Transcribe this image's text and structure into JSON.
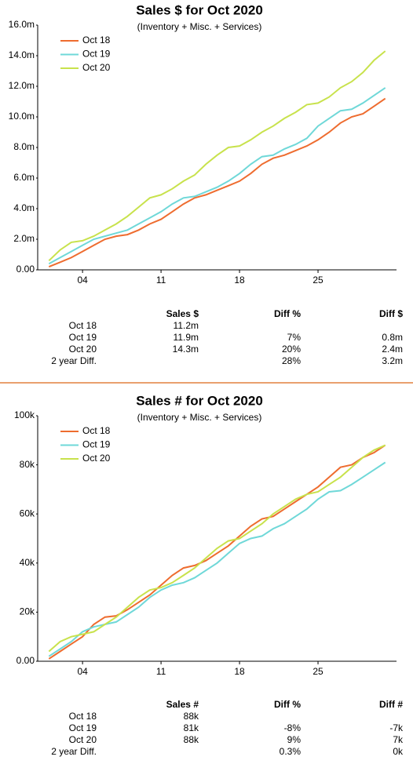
{
  "chart_data": [
    {
      "type": "line",
      "title": "Sales $ for Oct 2020",
      "subtitle": "(Inventory + Misc. + Services)",
      "x": [
        1,
        2,
        3,
        4,
        5,
        6,
        7,
        8,
        9,
        10,
        11,
        12,
        13,
        14,
        15,
        16,
        17,
        18,
        19,
        20,
        21,
        22,
        23,
        24,
        25,
        26,
        27,
        28,
        29,
        30,
        31
      ],
      "xlim": [
        0,
        32
      ],
      "xticks": [
        {
          "value": 4,
          "label": "04"
        },
        11,
        18,
        25
      ],
      "ylim": [
        0,
        16
      ],
      "yticks": [
        {
          "value": 0,
          "label": "0.00"
        },
        {
          "value": 2,
          "label": "2.0m"
        },
        {
          "value": 4,
          "label": "4.0m"
        },
        {
          "value": 6,
          "label": "6.0m"
        },
        {
          "value": 8,
          "label": "8.0m"
        },
        {
          "value": 10,
          "label": "10.0m"
        },
        {
          "value": 12,
          "label": "12.0m"
        },
        {
          "value": 14,
          "label": "14.0m"
        },
        {
          "value": 16,
          "label": "16.0m"
        }
      ],
      "legend": "top-left",
      "grid": false,
      "series": [
        {
          "name": "Oct 18",
          "color": "#ee6c2f",
          "values": [
            0.2,
            0.5,
            0.8,
            1.2,
            1.6,
            2.0,
            2.2,
            2.3,
            2.6,
            3.0,
            3.3,
            3.8,
            4.3,
            4.7,
            4.9,
            5.2,
            5.5,
            5.8,
            6.3,
            6.9,
            7.3,
            7.5,
            7.8,
            8.1,
            8.5,
            9.0,
            9.6,
            10.0,
            10.2,
            10.7,
            11.2
          ]
        },
        {
          "name": "Oct 19",
          "color": "#6fd8d8",
          "values": [
            0.4,
            0.8,
            1.2,
            1.6,
            2.0,
            2.2,
            2.4,
            2.6,
            3.0,
            3.4,
            3.8,
            4.3,
            4.7,
            4.8,
            5.1,
            5.4,
            5.8,
            6.3,
            6.9,
            7.4,
            7.5,
            7.9,
            8.2,
            8.6,
            9.4,
            9.9,
            10.4,
            10.5,
            10.9,
            11.4,
            11.9
          ]
        },
        {
          "name": "Oct 20",
          "color": "#c8e24c",
          "values": [
            0.6,
            1.3,
            1.8,
            1.9,
            2.2,
            2.6,
            3.0,
            3.5,
            4.1,
            4.7,
            4.9,
            5.3,
            5.8,
            6.2,
            6.9,
            7.5,
            8.0,
            8.1,
            8.5,
            9.0,
            9.4,
            9.9,
            10.3,
            10.8,
            10.9,
            11.3,
            11.9,
            12.3,
            12.9,
            13.7,
            14.3
          ]
        }
      ]
    },
    {
      "type": "line",
      "title": "Sales # for Oct 2020",
      "subtitle": "(Inventory + Misc. + Services)",
      "x": [
        1,
        2,
        3,
        4,
        5,
        6,
        7,
        8,
        9,
        10,
        11,
        12,
        13,
        14,
        15,
        16,
        17,
        18,
        19,
        20,
        21,
        22,
        23,
        24,
        25,
        26,
        27,
        28,
        29,
        30,
        31
      ],
      "xlim": [
        0,
        32
      ],
      "xticks": [
        {
          "value": 4,
          "label": "04"
        },
        11,
        18,
        25
      ],
      "ylim": [
        0,
        100
      ],
      "yticks": [
        {
          "value": 0,
          "label": "0.00"
        },
        {
          "value": 20,
          "label": "20k"
        },
        {
          "value": 40,
          "label": "40k"
        },
        {
          "value": 60,
          "label": "60k"
        },
        {
          "value": 80,
          "label": "80k"
        },
        {
          "value": 100,
          "label": "100k"
        }
      ],
      "legend": "top-left",
      "grid": false,
      "series": [
        {
          "name": "Oct 18",
          "color": "#ee6c2f",
          "values": [
            1,
            4,
            7,
            10,
            15,
            18,
            18.5,
            21,
            24,
            27,
            31,
            35,
            38,
            39,
            41,
            44,
            47,
            51,
            55,
            58,
            59,
            62,
            65,
            68,
            71,
            75,
            79,
            80,
            83,
            85,
            88
          ]
        },
        {
          "name": "Oct 19",
          "color": "#6fd8d8",
          "values": [
            2,
            5,
            8,
            12,
            14,
            15,
            16,
            19,
            22,
            26,
            29,
            31,
            32,
            34,
            37,
            40,
            44,
            48,
            50,
            51,
            54,
            56,
            59,
            62,
            66,
            69,
            69.5,
            72,
            75,
            78,
            81
          ]
        },
        {
          "name": "Oct 20",
          "color": "#c8e24c",
          "values": [
            4,
            8,
            10,
            11,
            12,
            15,
            18,
            22,
            26,
            29,
            30,
            32,
            35,
            38,
            42,
            46,
            49,
            50,
            53,
            56,
            60,
            63,
            66,
            68,
            69,
            72,
            75,
            79,
            83,
            86,
            88
          ]
        }
      ]
    }
  ],
  "tables": [
    {
      "columns": [
        "Sales $",
        "Diff %",
        "Diff $"
      ],
      "rows": [
        {
          "label": "Oct 18",
          "sales": "11.2m"
        },
        {
          "label": "Oct 19",
          "sales": "11.9m",
          "diff_pct": "7%",
          "diff_abs": "0.8m"
        },
        {
          "label": "Oct 20",
          "sales": "14.3m",
          "diff_pct": "20%",
          "diff_abs": "2.4m"
        },
        {
          "label": "2 year Diff.",
          "diff_pct": "28%",
          "diff_abs": "3.2m"
        }
      ]
    },
    {
      "columns": [
        "Sales #",
        "Diff %",
        "Diff #"
      ],
      "rows": [
        {
          "label": "Oct 18",
          "sales": "88k"
        },
        {
          "label": "Oct 19",
          "sales": "81k",
          "diff_pct": "-8%",
          "diff_abs": "-7k"
        },
        {
          "label": "Oct 20",
          "sales": "88k",
          "diff_pct": "9%",
          "diff_abs": "7k"
        },
        {
          "label": "2 year Diff.",
          "diff_pct": "0.3%",
          "diff_abs": "0k"
        }
      ]
    }
  ]
}
